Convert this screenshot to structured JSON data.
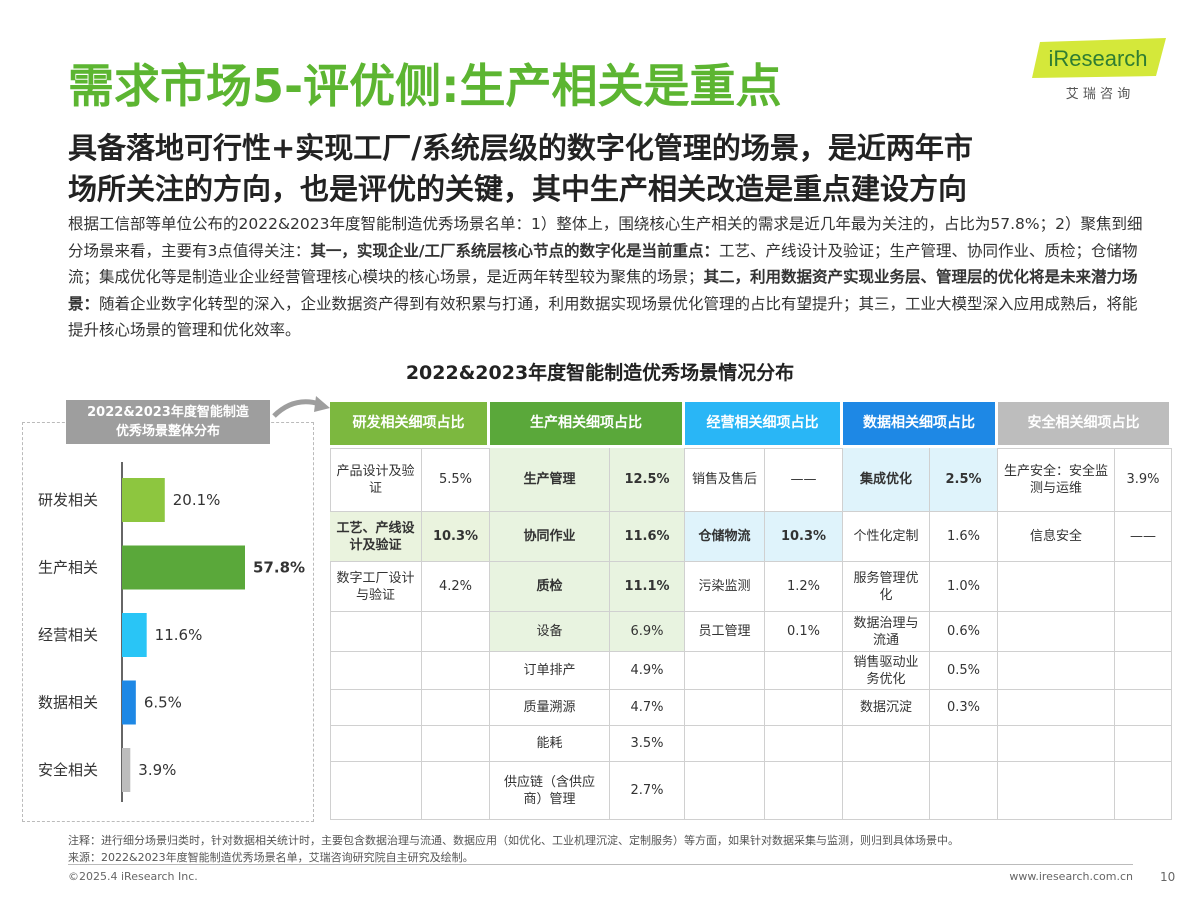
{
  "title": "需求市场5-评优侧:生产相关是重点",
  "subtitle": [
    "具备落地可行性+实现工厂/系统层级的数字化管理的场景，是近两年市",
    "场所关注的方向，也是评优的关键，其中生产相关改造是重点建设方向"
  ],
  "logo": {
    "name": "iResearch",
    "cn": "艾 瑞 咨 询"
  },
  "body": [
    {
      "text": "根据工信部等单位公布的2022&2023年度智能制造优秀场景名单：1）整体上，围绕核心生产相关的需求是近几年最为关注的，占比为57.8%；2）聚焦到细分场景来看，主要有3点值得关注：",
      "bold": false
    },
    {
      "text": "其一，实现企业/工厂系统层核心节点的数字化是当前重点：",
      "bold": true
    },
    {
      "text": "工艺、产线设计及验证；生产管理、协同作业、质检；仓储物流；集成优化等是制造业企业经营管理核心模块的核心场景，是近两年转型较为聚焦的场景；",
      "bold": false
    },
    {
      "text": "其二，利用数据资产实现业务层、管理层的优化将是未来潜力场景：",
      "bold": true
    },
    {
      "text": "随着企业数字化转型的深入，企业数据资产得到有效积累与打通，利用数据实现场景优化管理的占比有望提升；其三，工业大模型深入应用成熟后，将能提升核心场景的管理和优化效率。",
      "bold": false
    }
  ],
  "table_title": "2022&2023年度智能制造优秀场景情况分布",
  "chart_data": {
    "type": "bar",
    "orientation": "horizontal",
    "title": [
      "2022&2023年度智能制造",
      "优秀场景整体分布"
    ],
    "categories": [
      "研发相关",
      "生产相关",
      "经营相关",
      "数据相关",
      "安全相关"
    ],
    "values": [
      20.1,
      57.8,
      11.6,
      6.5,
      3.9
    ],
    "value_labels": [
      "20.1%",
      "57.8%",
      "11.6%",
      "6.5%",
      "3.9%"
    ],
    "colors": [
      "#8dc63f",
      "#5aa83a",
      "#29c5f6",
      "#1e88e5",
      "#bdbdbd"
    ]
  },
  "table": {
    "groups": [
      {
        "header": "研发相关细项占比",
        "header_color": "#7cb83f",
        "shade_color": "#eaf3de",
        "rows": [
          {
            "name": "产品设计及验证",
            "value": "5.5%"
          },
          {
            "name": "工艺、产线设计及验证",
            "value": "10.3%",
            "bold": true,
            "shade": true
          },
          {
            "name": "数字工厂设计与验证",
            "value": "4.2%"
          }
        ]
      },
      {
        "header": "生产相关细项占比",
        "header_color": "#5aa83a",
        "shade_color": "#e8f3e0",
        "rows": [
          {
            "name": "生产管理",
            "value": "12.5%",
            "bold": true,
            "shade": true
          },
          {
            "name": "协同作业",
            "value": "11.6%",
            "bold": true,
            "shade": true
          },
          {
            "name": "质检",
            "value": "11.1%",
            "bold": true,
            "shade": true
          },
          {
            "name": "设备",
            "value": "6.9%",
            "shade": true
          },
          {
            "name": "订单排产",
            "value": "4.9%"
          },
          {
            "name": "质量溯源",
            "value": "4.7%"
          },
          {
            "name": "能耗",
            "value": "3.5%"
          },
          {
            "name": "供应链（含供应商）管理",
            "value": "2.7%"
          }
        ]
      },
      {
        "header": "经营相关细项占比",
        "header_color": "#29b6f6",
        "shade_color": "#dff3fb",
        "rows": [
          {
            "name": "销售及售后",
            "value": "——"
          },
          {
            "name": "仓储物流",
            "value": "10.3%",
            "bold": true,
            "shade": true
          },
          {
            "name": "污染监测",
            "value": "1.2%"
          },
          {
            "name": "员工管理",
            "value": "0.1%"
          }
        ]
      },
      {
        "header": "数据相关细项占比",
        "header_color": "#1e88e5",
        "shade_color": "#dff3fb",
        "rows": [
          {
            "name": "集成优化",
            "value": "2.5%",
            "bold": true,
            "shade": true
          },
          {
            "name": "个性化定制",
            "value": "1.6%"
          },
          {
            "name": "服务管理优化",
            "value": "1.0%"
          },
          {
            "name": "数据治理与流通",
            "value": "0.6%"
          },
          {
            "name": "销售驱动业务优化",
            "value": "0.5%"
          },
          {
            "name": "数据沉淀",
            "value": "0.3%"
          }
        ]
      },
      {
        "header": "安全相关细项占比",
        "header_color": "#bdbdbd",
        "shade_color": "#f2f2f2",
        "rows": [
          {
            "name": "生产安全：安全监测与运维",
            "value": "3.9%"
          },
          {
            "name": "信息安全",
            "value": "——"
          }
        ]
      }
    ]
  },
  "note": "注释：进行细分场景归类时，针对数据相关统计时，主要包含数据治理与流通、数据应用（如优化、工业机理沉淀、定制服务）等方面，如果针对数据采集与监测，则归到具体场景中。",
  "source": "来源：2022&2023年度智能制造优秀场景名单，艾瑞咨询研究院自主研究及绘制。",
  "copyright": "©2025.4 iResearch Inc.",
  "url": "www.iresearch.com.cn",
  "page": "10"
}
